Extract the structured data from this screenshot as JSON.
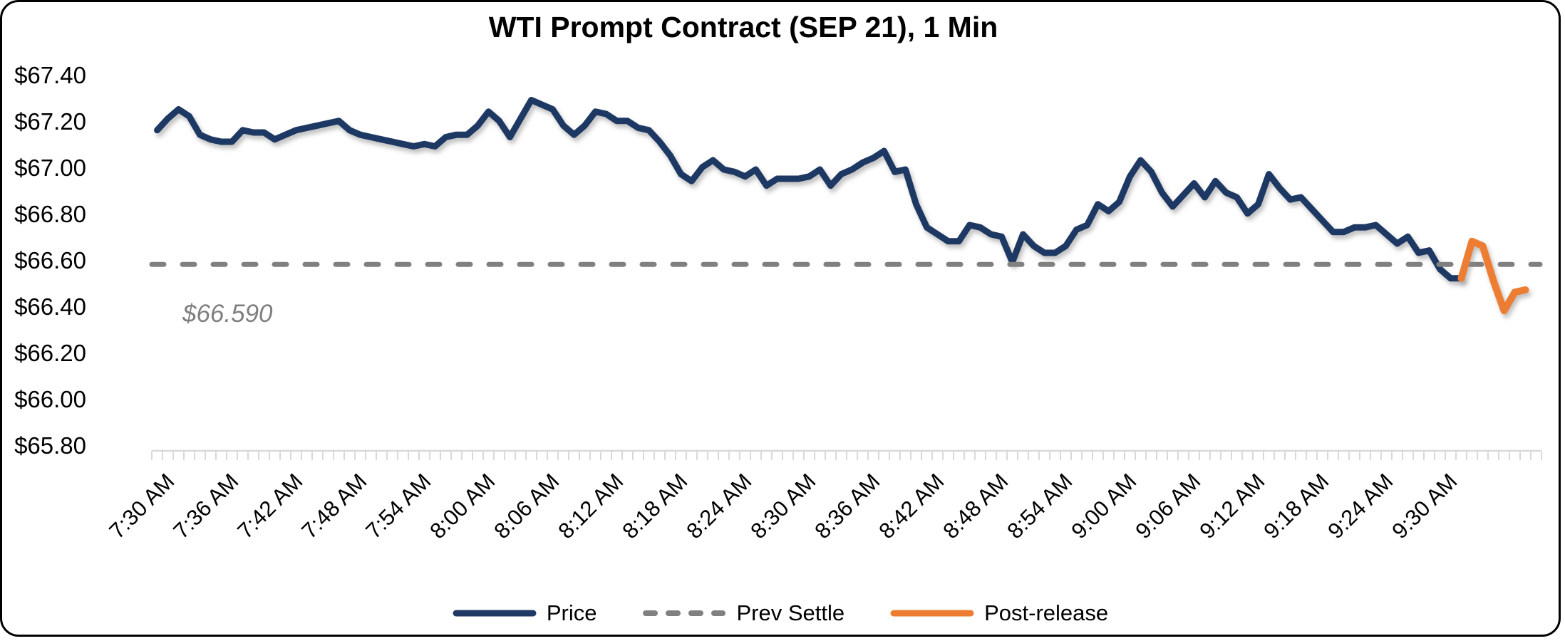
{
  "window": {
    "background_color": "#FFFFFF",
    "border_color": "#000000"
  },
  "chart_data": {
    "type": "line",
    "title": "WTI Prompt Contract (SEP 21), 1 Min",
    "grid": "off",
    "legend_position": "bottom",
    "y_axis": {
      "format": "dollars",
      "min": 65.8,
      "max": 67.4,
      "tick_step": 0.2,
      "tick_labels": [
        "$67.40",
        "$67.20",
        "$67.00",
        "$66.80",
        "$66.60",
        "$66.40",
        "$66.20",
        "$66.00",
        "$65.80"
      ]
    },
    "x_axis": {
      "unit": "1 minute per point",
      "label_interval_minutes": 6,
      "minor_tick_minutes": 1,
      "tick_labels": [
        "7:30 AM",
        "7:36 AM",
        "7:42 AM",
        "7:48 AM",
        "7:54 AM",
        "8:00 AM",
        "8:06 AM",
        "8:12 AM",
        "8:18 AM",
        "8:24 AM",
        "8:30 AM",
        "8:36 AM",
        "8:42 AM",
        "8:48 AM",
        "8:54 AM",
        "9:00 AM",
        "9:06 AM",
        "9:12 AM",
        "9:18 AM",
        "9:24 AM",
        "9:30 AM"
      ]
    },
    "prev_settle": {
      "value": 66.59,
      "annotation": "$66.590"
    },
    "series": [
      {
        "name": "Price",
        "color": "#1F3864",
        "line_style": "solid",
        "start_minute": 0,
        "values": [
          67.17,
          67.22,
          67.26,
          67.23,
          67.15,
          67.13,
          67.12,
          67.12,
          67.17,
          67.16,
          67.16,
          67.13,
          67.15,
          67.17,
          67.18,
          67.19,
          67.2,
          67.21,
          67.17,
          67.15,
          67.14,
          67.13,
          67.12,
          67.11,
          67.1,
          67.11,
          67.1,
          67.14,
          67.15,
          67.15,
          67.19,
          67.25,
          67.21,
          67.14,
          67.22,
          67.3,
          67.28,
          67.26,
          67.19,
          67.15,
          67.19,
          67.25,
          67.24,
          67.21,
          67.21,
          67.18,
          67.17,
          67.12,
          67.06,
          66.98,
          66.95,
          67.01,
          67.04,
          67.0,
          66.99,
          66.97,
          67.0,
          66.93,
          66.96,
          66.96,
          66.96,
          66.97,
          67.0,
          66.93,
          66.98,
          67.0,
          67.03,
          67.05,
          67.08,
          66.99,
          67.0,
          66.85,
          66.75,
          66.72,
          66.69,
          66.69,
          66.76,
          66.75,
          66.72,
          66.71,
          66.6,
          66.72,
          66.67,
          66.64,
          66.64,
          66.67,
          66.74,
          66.76,
          66.85,
          66.82,
          66.86,
          66.97,
          67.04,
          66.99,
          66.9,
          66.84,
          66.89,
          66.94,
          66.88,
          66.95,
          66.9,
          66.88,
          66.81,
          66.85,
          66.98,
          66.92,
          66.87,
          66.88,
          66.83,
          66.78,
          66.73,
          66.73,
          66.75,
          66.75,
          66.76,
          66.72,
          66.68,
          66.71,
          66.64,
          66.65,
          66.57,
          66.53,
          66.53
        ]
      },
      {
        "name": "Prev Settle",
        "color": "#808080",
        "line_style": "dashed",
        "kind": "hline",
        "value": 66.59
      },
      {
        "name": "Post-release",
        "color": "#ED7D31",
        "line_style": "solid",
        "start_minute": 122,
        "values": [
          66.53,
          66.69,
          66.67,
          66.52,
          66.39,
          66.47,
          66.48
        ]
      }
    ]
  }
}
